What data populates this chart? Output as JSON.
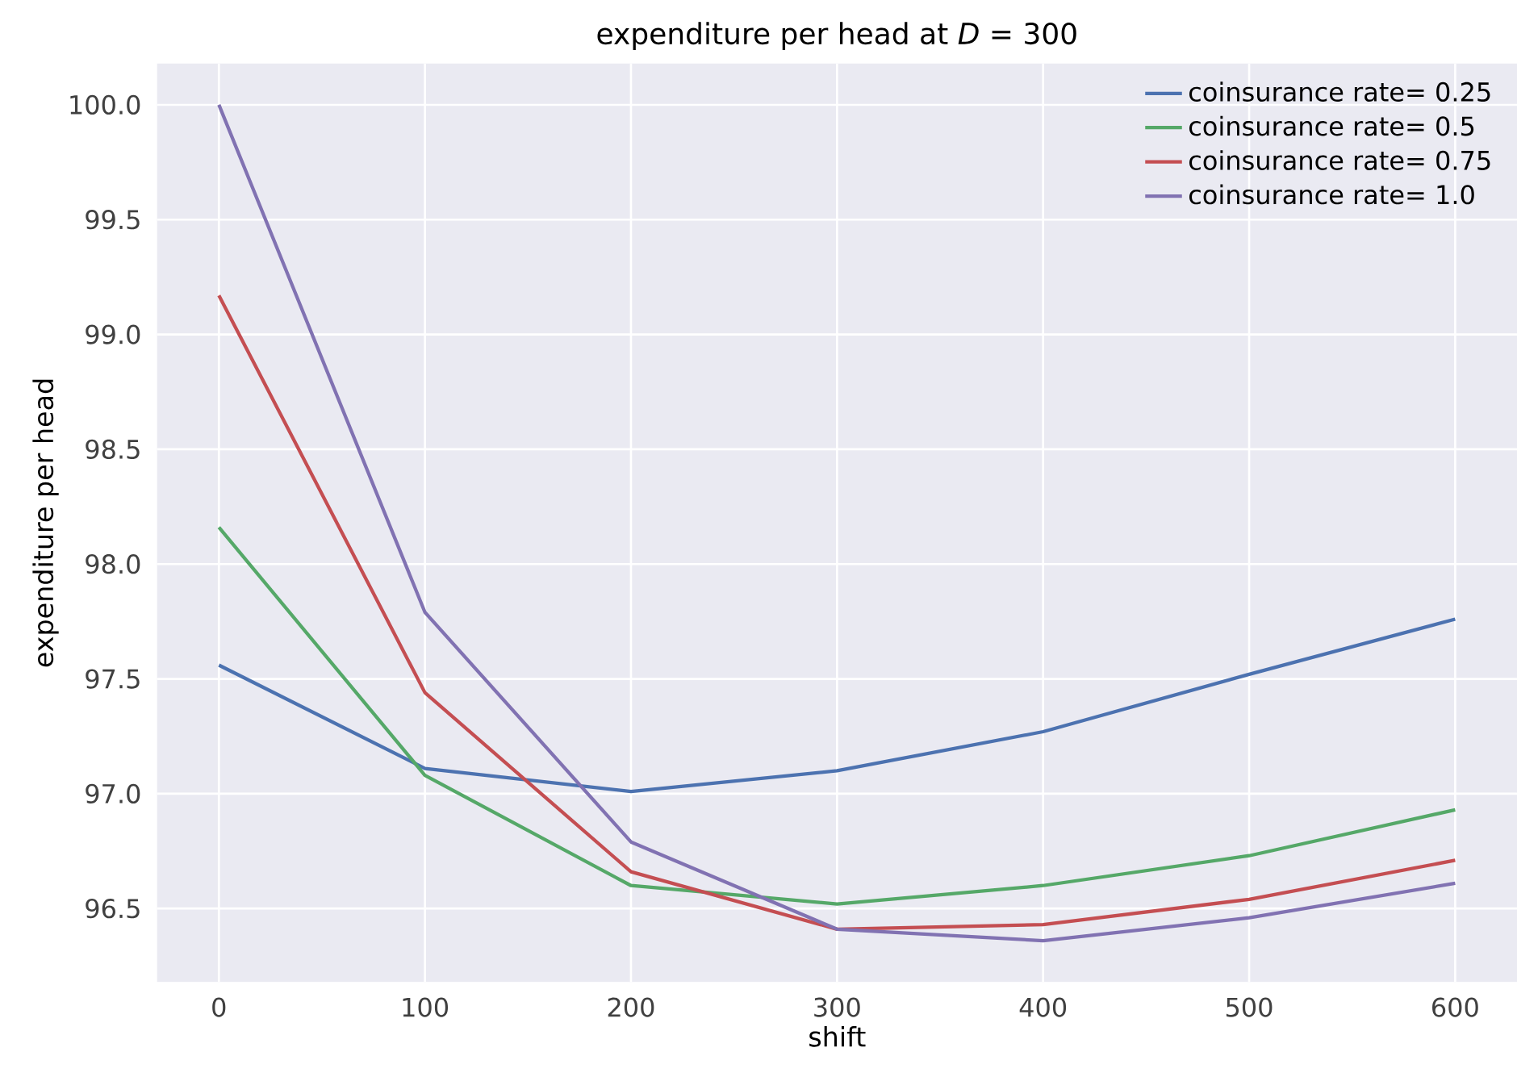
{
  "chart_data": {
    "type": "line",
    "title": "expenditure per head at *D* = 300",
    "xlabel": "shift",
    "ylabel": "expenditure per head",
    "x": [
      0,
      100,
      200,
      300,
      400,
      500,
      600
    ],
    "series": [
      {
        "name": "coinsurance rate= 0.25",
        "color": "#4c72b0",
        "values": [
          97.56,
          97.11,
          97.01,
          97.1,
          97.27,
          97.52,
          97.76
        ]
      },
      {
        "name": "coinsurance rate= 0.5",
        "color": "#55a868",
        "values": [
          98.16,
          97.08,
          96.6,
          96.52,
          96.6,
          96.73,
          96.93
        ]
      },
      {
        "name": "coinsurance rate= 0.75",
        "color": "#c44e52",
        "values": [
          99.17,
          97.44,
          96.66,
          96.41,
          96.43,
          96.54,
          96.71
        ]
      },
      {
        "name": "coinsurance rate= 1.0",
        "color": "#8172b2",
        "values": [
          100.0,
          97.79,
          96.79,
          96.41,
          96.36,
          96.46,
          96.61
        ]
      }
    ],
    "xlim": [
      -30,
      630
    ],
    "ylim": [
      96.18,
      100.18
    ],
    "xticks": [
      0,
      100,
      200,
      300,
      400,
      500,
      600
    ],
    "yticks": [
      {
        "value": 96.5,
        "label": "96.5"
      },
      {
        "value": 97.0,
        "label": "97.0"
      },
      {
        "value": 97.5,
        "label": "97.5"
      },
      {
        "value": 98.0,
        "label": "98.0"
      },
      {
        "value": 98.5,
        "label": "98.5"
      },
      {
        "value": 99.0,
        "label": "99.0"
      },
      {
        "value": 99.5,
        "label": "99.5"
      },
      {
        "value": 100.0,
        "label": "100.0"
      }
    ],
    "grid": true,
    "legend": "top right",
    "marker": "none",
    "line_style": "solid"
  }
}
